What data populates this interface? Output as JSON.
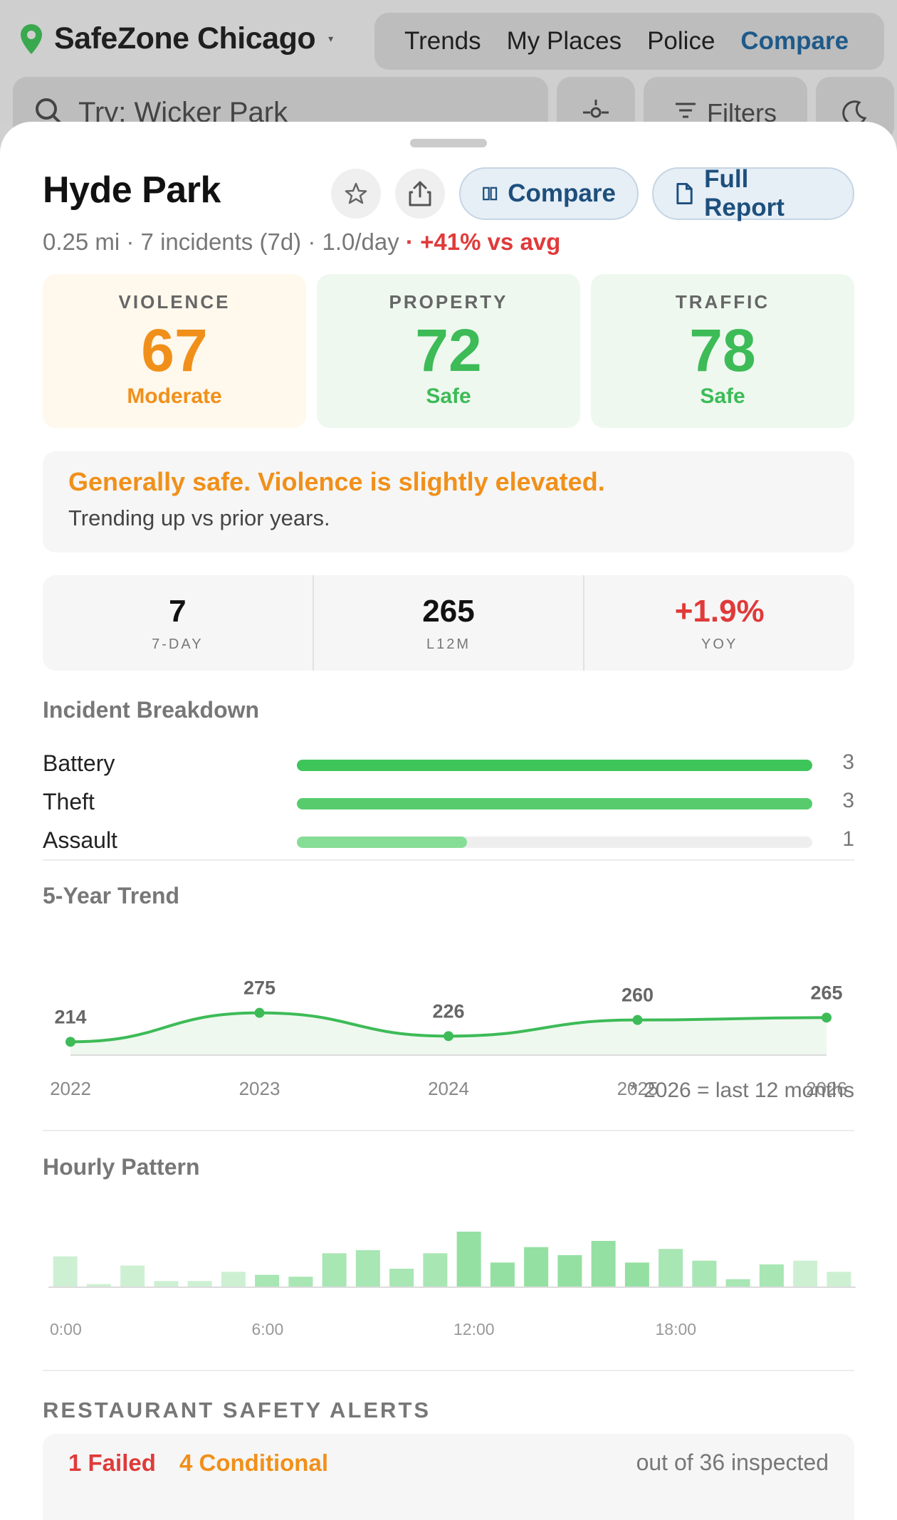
{
  "app": {
    "name": "SafeZone Chicago",
    "nav": [
      "Trends",
      "My Places",
      "Police",
      "Compare"
    ],
    "active_nav": "Compare",
    "search_placeholder": "Try: Wicker Park",
    "filters_label": "Filters"
  },
  "place": {
    "name": "Hyde Park",
    "distance": "0.25 mi",
    "incidents_7d": "7 incidents (7d)",
    "per_day": "1.0/day",
    "delta_vs_avg": "+41% vs avg",
    "compare_label": "Compare",
    "report_label": "Full Report"
  },
  "scores": [
    {
      "label": "VIOLENCE",
      "value": "67",
      "status": "Moderate",
      "color": "#f0901a",
      "bg": "#fff8ec"
    },
    {
      "label": "PROPERTY",
      "value": "72",
      "status": "Safe",
      "color": "#3dbb57",
      "bg": "#eef8ef"
    },
    {
      "label": "TRAFFIC",
      "value": "78",
      "status": "Safe",
      "color": "#3dbb57",
      "bg": "#eef8ef"
    }
  ],
  "summary": {
    "headline": "Generally safe. Violence is slightly elevated.",
    "detail": "Trending up vs prior years."
  },
  "stats": [
    {
      "value": "7",
      "label": "7-DAY",
      "color": "#111111"
    },
    {
      "value": "265",
      "label": "L12M",
      "color": "#111111"
    },
    {
      "value": "+1.9%",
      "label": "YOY",
      "color": "#e03a3a"
    }
  ],
  "breakdown": {
    "title": "Incident Breakdown",
    "items": [
      {
        "label": "Battery",
        "count": 3,
        "fraction": 1.0,
        "color": "#3dc55a"
      },
      {
        "label": "Theft",
        "count": 3,
        "fraction": 1.0,
        "color": "#58cc6d"
      },
      {
        "label": "Assault",
        "count": 1,
        "fraction": 0.33,
        "color": "#86dd96"
      }
    ]
  },
  "chart_data": [
    {
      "type": "line",
      "title": "5-Year Trend",
      "x": [
        "2022",
        "2023",
        "2024",
        "2025",
        "2026"
      ],
      "values": [
        214,
        275,
        226,
        260,
        265
      ],
      "ylim": [
        150,
        300
      ],
      "footnote": "* 2026 = last 12 months",
      "color": "#3dbb57"
    },
    {
      "type": "bar",
      "title": "Hourly Pattern",
      "categories": [
        "0:00",
        "1:00",
        "2:00",
        "3:00",
        "4:00",
        "5:00",
        "6:00",
        "7:00",
        "8:00",
        "9:00",
        "10:00",
        "11:00",
        "12:00",
        "13:00",
        "14:00",
        "15:00",
        "16:00",
        "17:00",
        "18:00",
        "19:00",
        "20:00",
        "21:00",
        "22:00",
        "23:00"
      ],
      "tick_labels": [
        "0:00",
        "6:00",
        "12:00",
        "18:00"
      ],
      "values": [
        5,
        0.5,
        3.5,
        1,
        1,
        2.5,
        2,
        1.7,
        5.5,
        6,
        3,
        5.5,
        9,
        4,
        6.5,
        5.2,
        7.5,
        4,
        6.2,
        4.3,
        1.3,
        3.7,
        4.3,
        2.5
      ],
      "ylim": [
        0,
        9
      ],
      "colors": [
        "#cdf0d3",
        "#cdf0d3",
        "#cdf0d3",
        "#cdf0d3",
        "#cdf0d3",
        "#cdf0d3",
        "#a8e6b4",
        "#a8e6b4",
        "#a8e6b4",
        "#a8e6b4",
        "#a8e6b4",
        "#a8e6b4",
        "#94e0a2",
        "#94e0a2",
        "#94e0a2",
        "#94e0a2",
        "#94e0a2",
        "#94e0a2",
        "#a8e6b4",
        "#a8e6b4",
        "#a8e6b4",
        "#a8e6b4",
        "#cdf0d3",
        "#cdf0d3"
      ]
    }
  ],
  "alerts": {
    "title": "RESTAURANT SAFETY ALERTS",
    "failed": "1 Failed",
    "conditional": "4 Conditional",
    "inspected": "out of 36 inspected"
  }
}
